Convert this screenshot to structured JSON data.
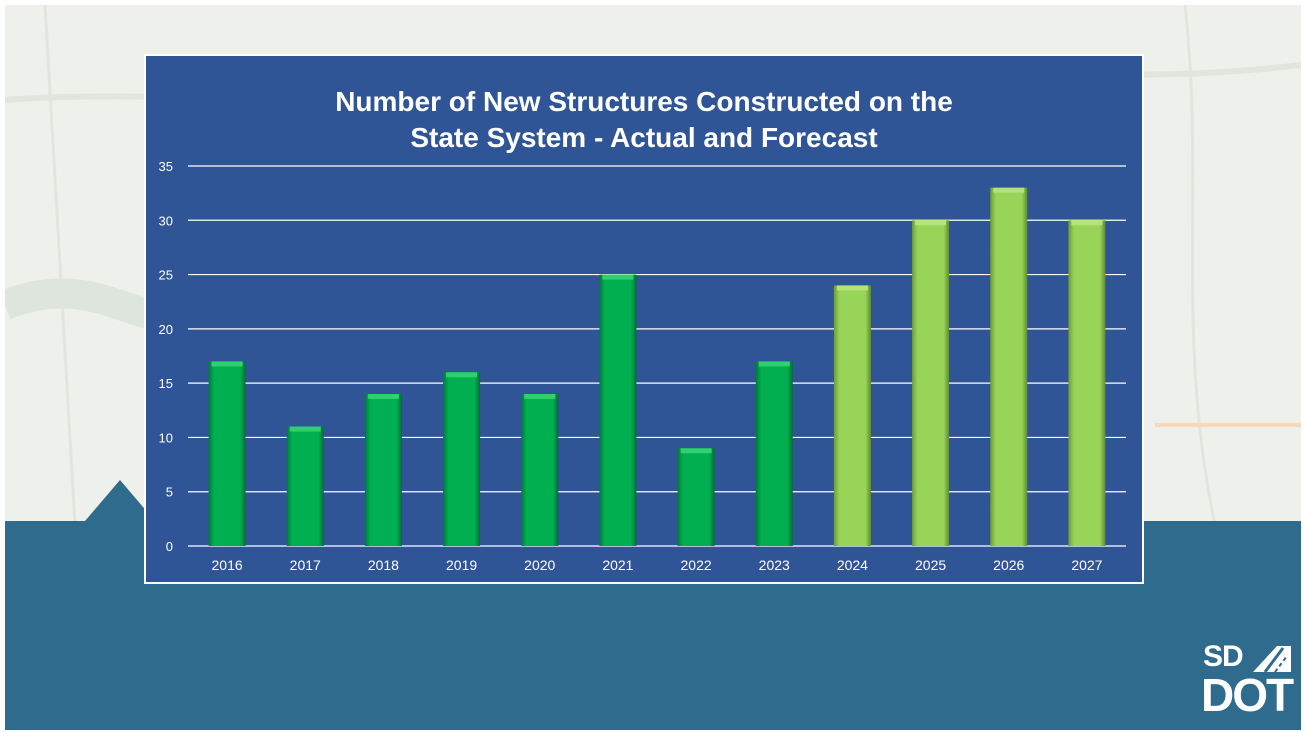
{
  "colors": {
    "map": "#eef0ec",
    "band": "#2f6b8c",
    "panel": "#2f5597",
    "actual": "#00b050",
    "forecast": "#92d050",
    "gridline": "#ffffff",
    "text": "#ffffff"
  },
  "branding": {
    "logo_top": "SD",
    "logo_bottom": "DOT",
    "logo_icon": "road-icon"
  },
  "chart_data": {
    "type": "bar",
    "title_lines": [
      "Number of New Structures Constructed on the",
      "State System - Actual and Forecast"
    ],
    "xlabel": "",
    "ylabel": "",
    "categories": [
      "2016",
      "2017",
      "2018",
      "2019",
      "2020",
      "2021",
      "2022",
      "2023",
      "2024",
      "2025",
      "2026",
      "2027"
    ],
    "values": [
      17,
      11,
      14,
      16,
      14,
      25,
      9,
      17,
      24,
      30,
      33,
      30
    ],
    "kinds": [
      "actual",
      "actual",
      "actual",
      "actual",
      "actual",
      "actual",
      "actual",
      "actual",
      "forecast",
      "forecast",
      "forecast",
      "forecast"
    ],
    "ylim": [
      0,
      35
    ],
    "yticks": [
      0,
      5,
      10,
      15,
      20,
      25,
      30,
      35
    ],
    "grid": true,
    "legend": "none"
  }
}
